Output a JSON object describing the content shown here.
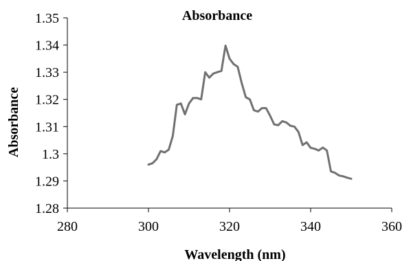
{
  "chart_data": {
    "type": "line",
    "title": "Absorbance",
    "xlabel": "Wavelength (nm)",
    "ylabel": "Absorbance",
    "xlim": [
      280,
      360
    ],
    "ylim": [
      1.28,
      1.35
    ],
    "x_ticks": [
      280,
      300,
      320,
      340,
      360
    ],
    "y_ticks": [
      1.28,
      1.29,
      1.3,
      1.31,
      1.32,
      1.33,
      1.34,
      1.35
    ],
    "x_tick_labels": [
      "280",
      "300",
      "320",
      "340",
      "360"
    ],
    "y_tick_labels": [
      "1.28",
      "1.29",
      "1.3",
      "1.31",
      "1.32",
      "1.33",
      "1.34",
      "1.35"
    ],
    "grid": false,
    "legend": "none",
    "line_color": "#707070",
    "series": [
      {
        "x": [
          300,
          301,
          302,
          303,
          304,
          305,
          306,
          307,
          308,
          309,
          310,
          311,
          312,
          313,
          314,
          315,
          316,
          317,
          318,
          319,
          320,
          321,
          322,
          323,
          324,
          325,
          326,
          327,
          328,
          329,
          330,
          331,
          332,
          333,
          334,
          335,
          336,
          337,
          338,
          339,
          340,
          341,
          342,
          343,
          344,
          345,
          346,
          347,
          348,
          349,
          350
        ],
        "values": [
          1.296,
          1.2965,
          1.298,
          1.301,
          1.3005,
          1.3015,
          1.3065,
          1.318,
          1.3185,
          1.3145,
          1.3185,
          1.3205,
          1.3205,
          1.32,
          1.33,
          1.328,
          1.3295,
          1.33,
          1.3305,
          1.3398,
          1.335,
          1.333,
          1.332,
          1.326,
          1.3208,
          1.32,
          1.316,
          1.3155,
          1.3168,
          1.3168,
          1.314,
          1.3108,
          1.3105,
          1.312,
          1.3115,
          1.3103,
          1.31,
          1.308,
          1.3032,
          1.3042,
          1.3022,
          1.3018,
          1.3012,
          1.3023,
          1.3012,
          1.2935,
          1.293,
          1.292,
          1.2917,
          1.2912,
          1.2908
        ]
      }
    ]
  }
}
